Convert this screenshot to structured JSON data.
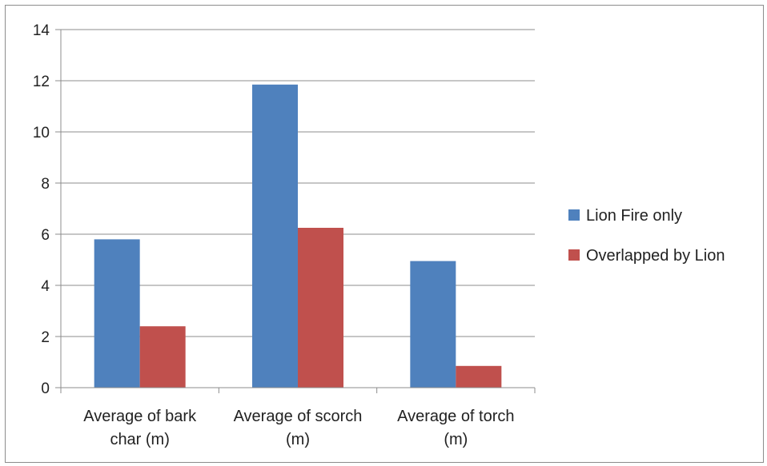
{
  "chart_data": {
    "type": "bar",
    "categories": [
      [
        "Average of bark",
        "char (m)"
      ],
      [
        "Average of scorch",
        "(m)"
      ],
      [
        "Average of torch",
        "(m)"
      ]
    ],
    "series": [
      {
        "name": "Lion Fire only",
        "color": "#4f81bd",
        "values": [
          5.8,
          11.85,
          4.95
        ]
      },
      {
        "name": "Overlapped by Lion",
        "color": "#c0504d",
        "values": [
          2.4,
          6.25,
          0.85
        ]
      }
    ],
    "yticks": [
      0,
      2,
      4,
      6,
      8,
      10,
      12,
      14
    ],
    "ylim": [
      0,
      14
    ],
    "grid": true,
    "legend": "right",
    "title": "",
    "xlabel": "",
    "ylabel": ""
  }
}
